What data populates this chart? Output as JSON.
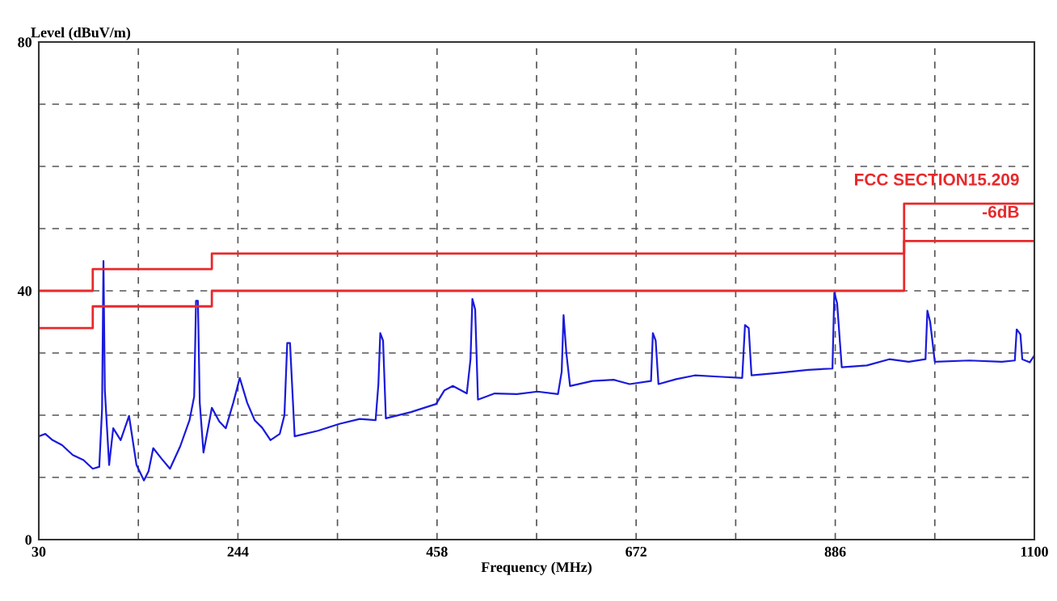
{
  "chart_data": {
    "type": "line",
    "xlabel": "Frequency (MHz)",
    "ylabel": "Level (dBuV/m)",
    "xlim": [
      30,
      1100
    ],
    "ylim": [
      0,
      80
    ],
    "xticks": [
      30,
      {
        "value": 137,
        "label": null
      },
      244,
      {
        "value": 351,
        "label": null
      },
      458,
      {
        "value": 565,
        "label": null
      },
      672,
      {
        "value": 779,
        "label": null
      },
      886,
      {
        "value": 993,
        "label": null
      },
      1100
    ],
    "yticks": [
      0,
      {
        "value": 10,
        "label": null
      },
      {
        "value": 20,
        "label": null
      },
      {
        "value": 30,
        "label": null
      },
      40,
      {
        "value": 50,
        "label": null
      },
      {
        "value": 60,
        "label": null
      },
      {
        "value": 70,
        "label": null
      },
      80
    ],
    "grid": true,
    "legend": false,
    "marker": "none",
    "line_style": "solid",
    "annotations": [
      "FCC SECTION15.209",
      "-6dB"
    ],
    "series": [
      {
        "color": "#1a1adc",
        "x": [
          30,
          37,
          44.8,
          55,
          66.5,
          78,
          88,
          95,
          98,
          99.5,
          101,
          105.6,
          110,
          118,
          127,
          135,
          143,
          148,
          153,
          162,
          171,
          182,
          192,
          197,
          199,
          201,
          203,
          207,
          216,
          224,
          231,
          239,
          246,
          254,
          262,
          270,
          279,
          289,
          294,
          297,
          300,
          305,
          330,
          353,
          375,
          392,
          395,
          397,
          400,
          403,
          430,
          457,
          466,
          475,
          490,
          494,
          496,
          499,
          502,
          520,
          544,
          566,
          588,
          592,
          594,
          597,
          601,
          625,
          648,
          665,
          688,
          690,
          693,
          696,
          715,
          735,
          760,
          786,
          789,
          793,
          796,
          825,
          857,
          883,
          885,
          888,
          893,
          920,
          944,
          965,
          983,
          985,
          988,
          993,
          1030,
          1065,
          1079,
          1081,
          1085,
          1087,
          1095,
          1100
        ],
        "values": [
          16.6,
          17,
          16,
          15.2,
          13.6,
          12.8,
          11.4,
          11.7,
          21,
          44.8,
          24,
          12,
          17.9,
          16,
          19.9,
          12,
          9.5,
          11,
          14.7,
          13,
          11.4,
          15,
          19.2,
          23,
          38.4,
          38.4,
          22,
          14,
          21.2,
          19,
          17.9,
          22,
          26,
          22,
          19.2,
          18,
          16,
          17,
          20,
          31.6,
          31.6,
          16.6,
          17.5,
          18.6,
          19.4,
          19.2,
          25,
          33.2,
          32,
          19.5,
          20.5,
          21.8,
          24,
          24.7,
          23.5,
          29,
          38.7,
          37,
          22.5,
          23.5,
          23.4,
          23.8,
          23.4,
          27,
          36.1,
          30,
          24.7,
          25.5,
          25.7,
          25,
          25.5,
          33.2,
          32,
          25,
          25.8,
          26.4,
          26.2,
          26,
          34.5,
          34,
          26.4,
          26.8,
          27.3,
          27.5,
          39.7,
          38,
          27.7,
          28,
          29,
          28.6,
          29,
          36.8,
          35,
          28.6,
          28.8,
          28.6,
          28.8,
          33.8,
          33,
          29,
          28.5,
          29.6
        ]
      },
      {
        "color": "#e8292b",
        "x": [
          30,
          88,
          88,
          216,
          216,
          960,
          960,
          1100
        ],
        "values": [
          40,
          40,
          43.5,
          43.5,
          46,
          46,
          54,
          54
        ]
      },
      {
        "color": "#e8292b",
        "x": [
          30,
          88,
          88,
          216,
          216,
          960,
          960,
          1100
        ],
        "values": [
          34,
          34,
          37.5,
          37.5,
          40,
          40,
          48,
          48
        ]
      }
    ]
  }
}
